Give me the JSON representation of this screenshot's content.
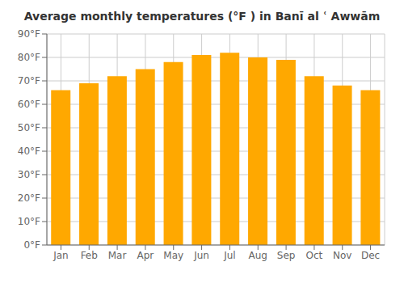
{
  "chart_data": {
    "type": "bar",
    "title": "Average monthly temperatures (°F ) in Banī al ʿ Awwām",
    "categories": [
      "Jan",
      "Feb",
      "Mar",
      "Apr",
      "May",
      "Jun",
      "Jul",
      "Aug",
      "Sep",
      "Oct",
      "Nov",
      "Dec"
    ],
    "values": [
      66,
      69,
      72,
      75,
      78,
      81,
      82,
      80,
      79,
      72,
      68,
      66
    ],
    "color": "#FFA800",
    "ylim": [
      0,
      90
    ],
    "yticks": [
      {
        "value": 0,
        "label": "0°F"
      },
      {
        "value": 10,
        "label": "10°F"
      },
      {
        "value": 20,
        "label": "20°F"
      },
      {
        "value": 30,
        "label": "30°F"
      },
      {
        "value": 40,
        "label": "40°F"
      },
      {
        "value": 50,
        "label": "50°F"
      },
      {
        "value": 60,
        "label": "60°F"
      },
      {
        "value": 70,
        "label": "70°F"
      },
      {
        "value": 80,
        "label": "80°F"
      },
      {
        "value": 90,
        "label": "90°F"
      }
    ],
    "grid": true
  }
}
